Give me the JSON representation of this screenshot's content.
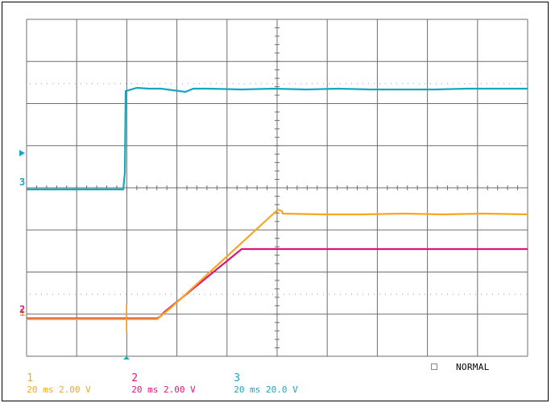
{
  "scope": {
    "colors": {
      "grid": "#6e6e6e",
      "ch1": "#f5a623",
      "ch2": "#e0157a",
      "ch3": "#16a7c0"
    },
    "markers": {
      "ch3_ground": "3",
      "ch1_ground": "1",
      "ch2_ground": "2"
    },
    "status": {
      "ch1": {
        "num": "1",
        "text": "20 ms 2.00 V"
      },
      "ch2": {
        "num": "2",
        "text": "20 ms 2.00 V"
      },
      "ch3": {
        "num": "3",
        "text": "20 ms 20.0 V"
      },
      "mode": "NORMAL"
    }
  }
}
